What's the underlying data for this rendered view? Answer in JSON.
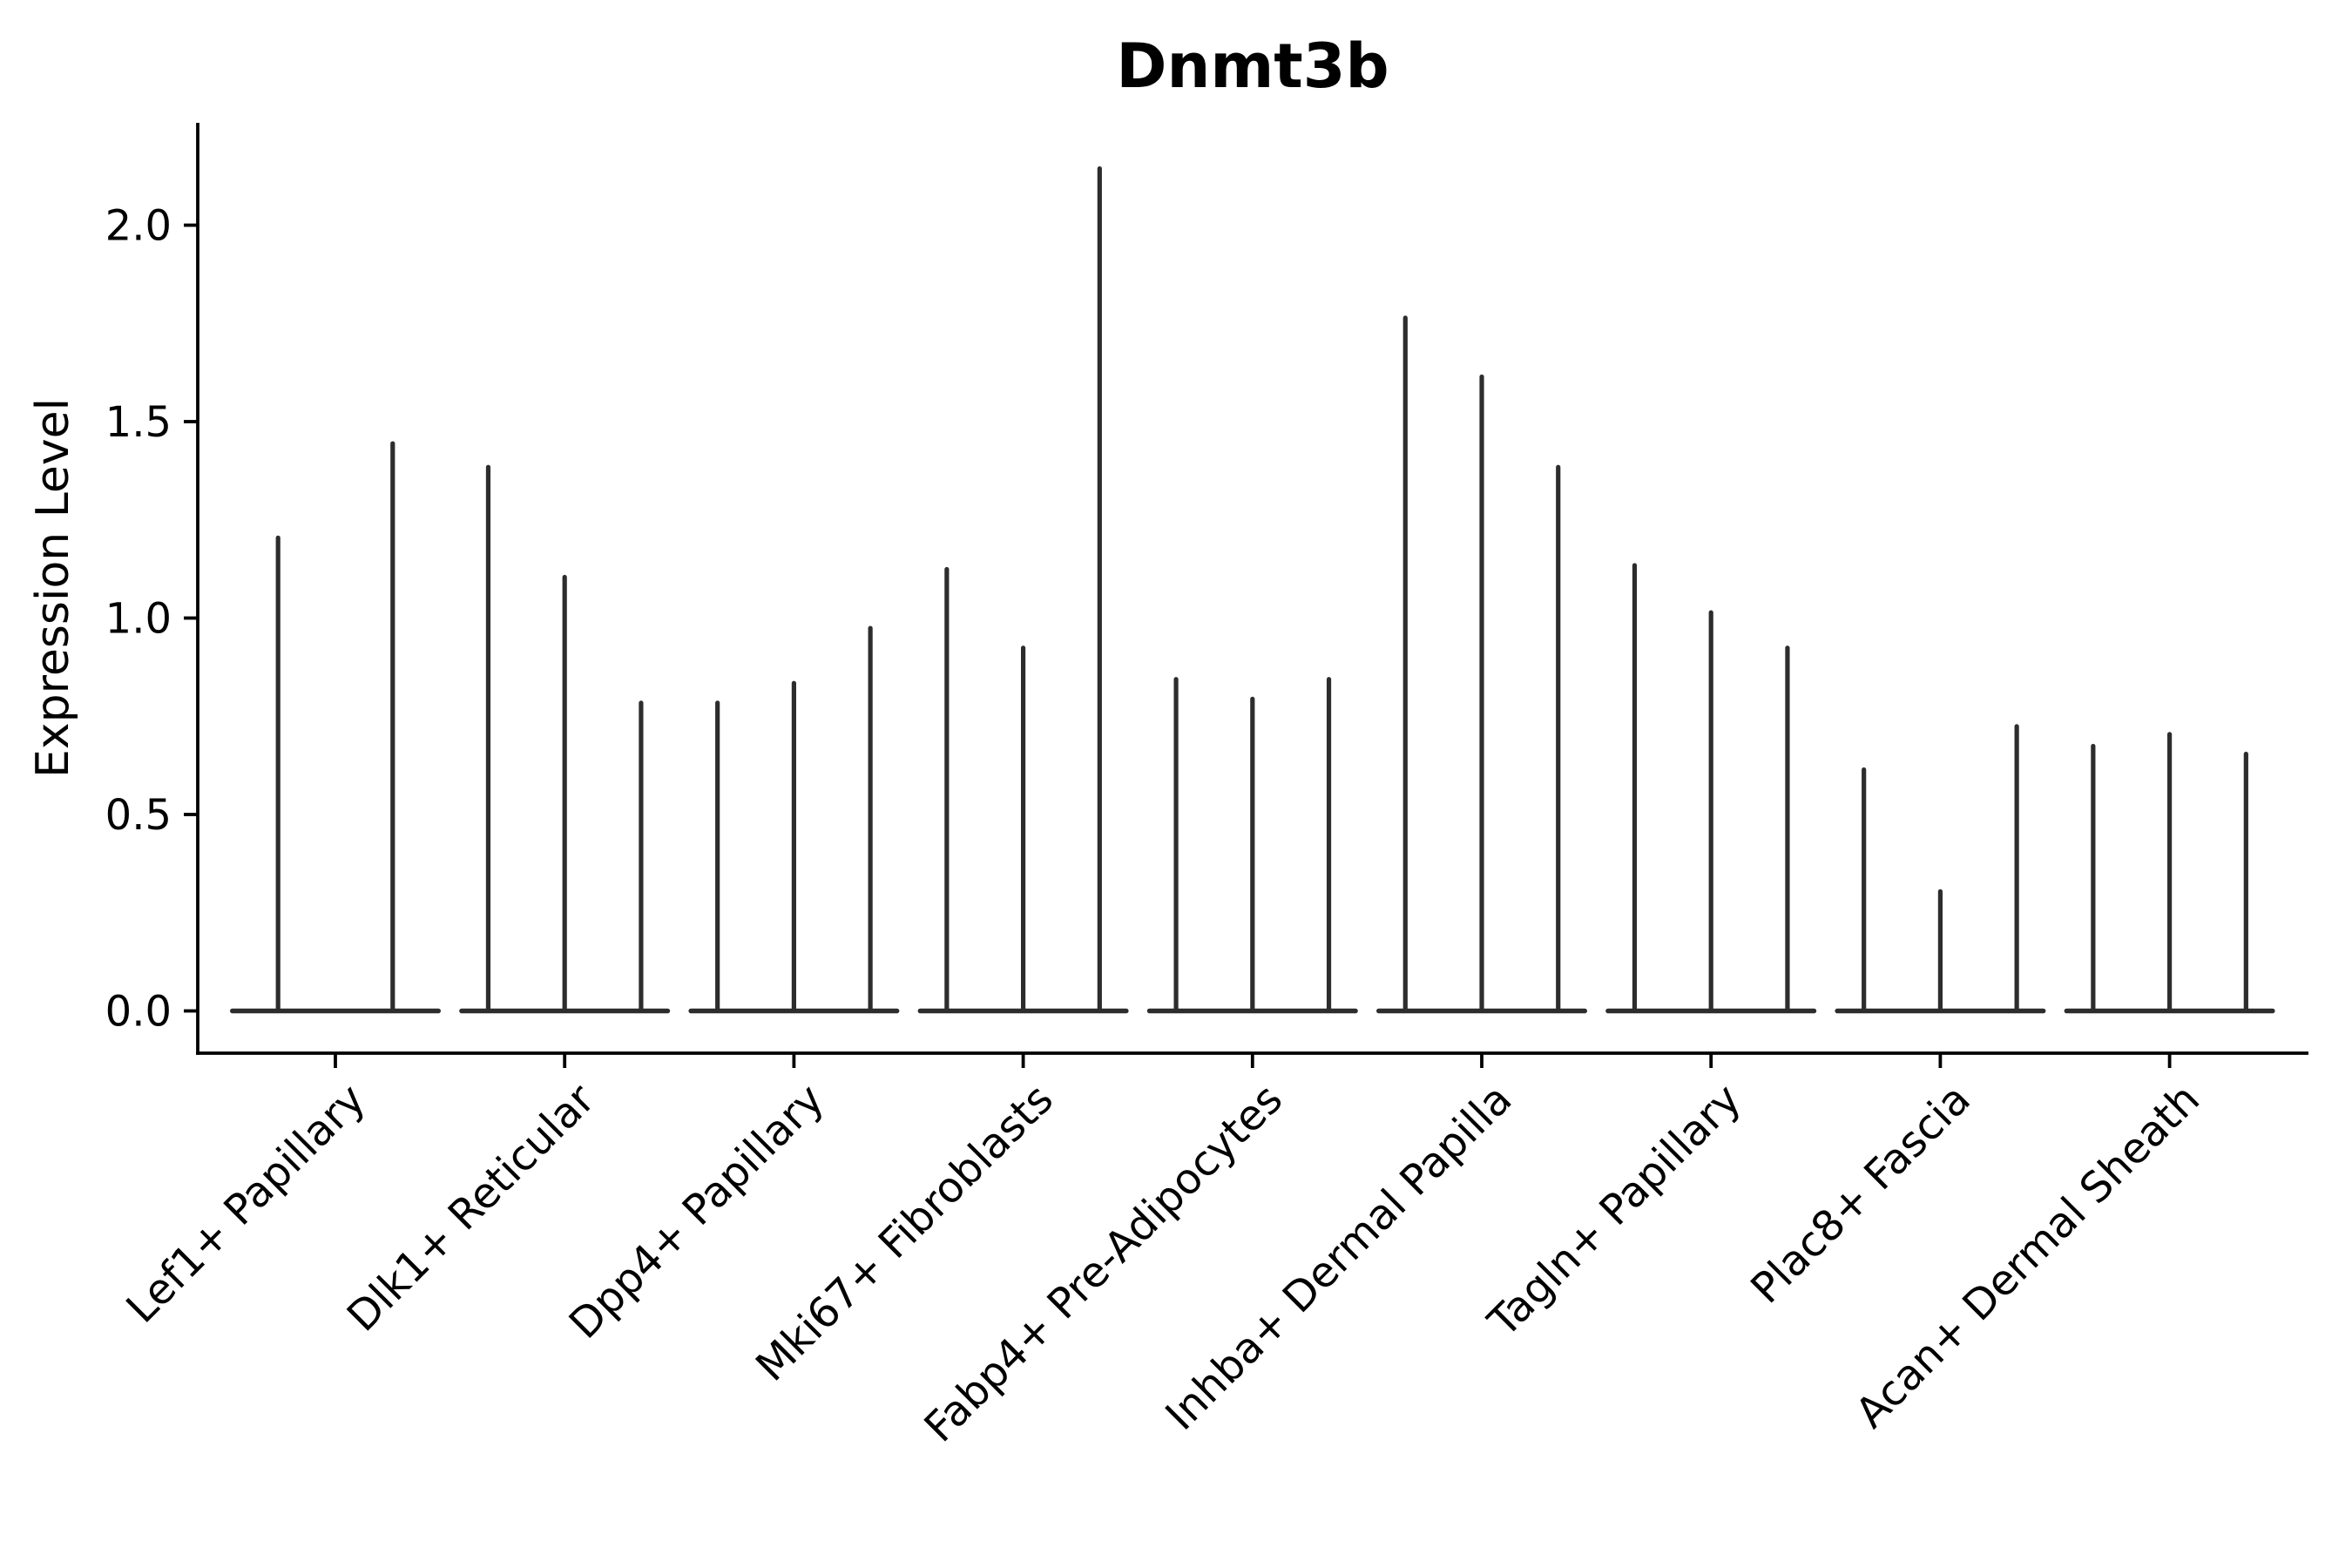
{
  "page": {
    "background": "#ffffff"
  },
  "chart_data": {
    "type": "violin",
    "title": "Dnmt3b",
    "ylabel": "Expression Level",
    "xlabel": "",
    "categories": [
      "Lef1+ Papillary",
      "Dlk1+ Reticular",
      "Dpp4+ Papillary",
      "Mki67+ Fibroblasts",
      "Fabp4+ Pre-Adipocytes",
      "Inhba+ Dermal Papilla",
      "Tagln+ Papillary",
      "Plac8+ Fascia",
      "Acan+ Dermal Sheath"
    ],
    "series": [
      {
        "category": "Lef1+ Papillary",
        "violin_maxima": [
          1.21,
          1.45
        ]
      },
      {
        "category": "Dlk1+ Reticular",
        "violin_maxima": [
          1.39,
          1.11,
          0.79
        ]
      },
      {
        "category": "Dpp4+ Papillary",
        "violin_maxima": [
          0.79,
          0.84,
          0.98
        ]
      },
      {
        "category": "Mki67+ Fibroblasts",
        "violin_maxima": [
          1.13,
          0.93,
          2.15
        ]
      },
      {
        "category": "Fabp4+ Pre-Adipocytes",
        "violin_maxima": [
          0.85,
          0.8,
          0.85
        ]
      },
      {
        "category": "Inhba+ Dermal Papilla",
        "violin_maxima": [
          1.77,
          1.62,
          1.39
        ]
      },
      {
        "category": "Tagln+ Papillary",
        "violin_maxima": [
          1.14,
          1.02,
          0.93
        ]
      },
      {
        "category": "Plac8+ Fascia",
        "violin_maxima": [
          0.62,
          0.31,
          0.73
        ]
      },
      {
        "category": "Acan+ Dermal Sheath",
        "violin_maxima": [
          0.68,
          0.71,
          0.66
        ]
      }
    ],
    "value_floor": 0.0,
    "yticks": {
      "values": [
        0.0,
        0.5,
        1.0,
        1.5,
        2.0
      ],
      "labels": [
        "0.0",
        "0.5",
        "1.0",
        "1.5",
        "2.0"
      ]
    },
    "ylim": [
      -0.11,
      2.26
    ],
    "grid": false,
    "legend": "none",
    "x_tick_label_rotation_deg": 45,
    "colors": {
      "violin": "#2d2d2d",
      "axis": "#000000",
      "text": "#000000",
      "background": "#ffffff"
    }
  }
}
